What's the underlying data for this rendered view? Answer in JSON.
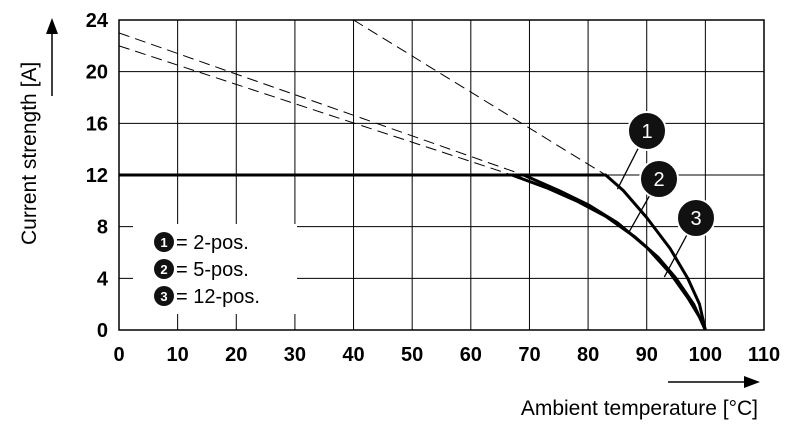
{
  "chart_data": {
    "type": "line",
    "xlabel": "Ambient temperature [°C]",
    "ylabel": "Current strength [A]",
    "xlim": [
      0,
      110
    ],
    "ylim": [
      0,
      24
    ],
    "x_ticks": [
      "0",
      "10",
      "20",
      "30",
      "40",
      "50",
      "60",
      "70",
      "80",
      "90",
      "100",
      "110"
    ],
    "y_ticks": [
      "0",
      "4",
      "8",
      "12",
      "16",
      "20",
      "24"
    ],
    "grid": true,
    "legend_position": "bottom-left",
    "series": [
      {
        "id": "1",
        "name": "2-pos.",
        "points": [
          [
            0,
            12
          ],
          [
            83,
            12
          ],
          [
            86,
            10.8
          ],
          [
            90,
            8.7
          ],
          [
            94,
            6.3
          ],
          [
            97,
            4.0
          ],
          [
            99,
            2.0
          ],
          [
            100,
            0
          ]
        ]
      },
      {
        "id": "2",
        "name": "5-pos.",
        "points": [
          [
            0,
            12
          ],
          [
            69,
            12
          ],
          [
            75,
            10.8
          ],
          [
            80,
            9.7
          ],
          [
            85,
            8.3
          ],
          [
            90,
            6.4
          ],
          [
            94,
            4.4
          ],
          [
            97,
            2.5
          ],
          [
            99,
            1.0
          ],
          [
            100,
            0
          ]
        ]
      },
      {
        "id": "3",
        "name": "12-pos.",
        "points": [
          [
            0,
            12
          ],
          [
            67,
            12
          ],
          [
            73,
            11.0
          ],
          [
            78,
            10.0
          ],
          [
            83,
            8.8
          ],
          [
            88,
            7.2
          ],
          [
            92,
            5.6
          ],
          [
            95,
            4.0
          ],
          [
            98,
            2.0
          ],
          [
            100,
            0
          ]
        ]
      }
    ],
    "dashed_lines": [
      {
        "id": "1",
        "points": [
          [
            40,
            24
          ],
          [
            83,
            12
          ]
        ]
      },
      {
        "id": "2",
        "points": [
          [
            0,
            23
          ],
          [
            69,
            12
          ]
        ]
      },
      {
        "id": "3",
        "points": [
          [
            0,
            22
          ],
          [
            67,
            12
          ]
        ]
      }
    ],
    "callouts": [
      {
        "label": "1",
        "points_to": [
          85,
          10.9
        ]
      },
      {
        "label": "2",
        "points_to": [
          87,
          7.6
        ]
      },
      {
        "label": "3",
        "points_to": [
          93,
          4.1
        ]
      }
    ],
    "legend": [
      {
        "badge": "1",
        "text": "= 2-pos."
      },
      {
        "badge": "2",
        "text": "= 5-pos."
      },
      {
        "badge": "3",
        "text": "= 12-pos."
      }
    ]
  }
}
